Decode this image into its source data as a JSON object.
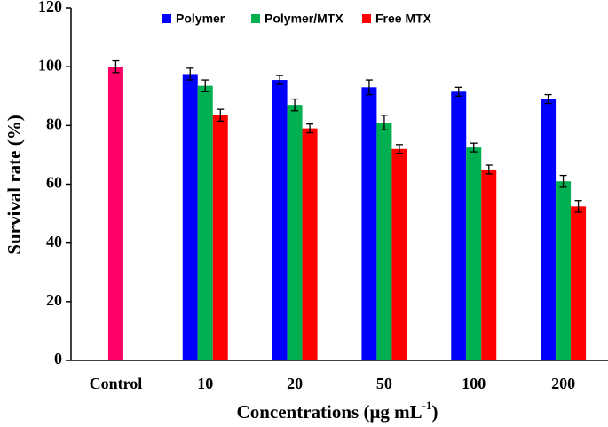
{
  "chart_data": {
    "type": "bar",
    "y_label": "Survival rate (%)",
    "x_label": "Concentrations (μg mL",
    "x_label_sup": "-1",
    "x_label_end": ")",
    "categories": [
      "Control",
      "10",
      "20",
      "50",
      "100",
      "200"
    ],
    "control": {
      "color": "#ff0066",
      "value": 100,
      "error": 2
    },
    "series": [
      {
        "name": "Polymer",
        "color": "#0000ff",
        "values": [
          null,
          97.5,
          95.5,
          93,
          91.5,
          89
        ],
        "errors": [
          null,
          2,
          1.5,
          2.5,
          1.5,
          1.5
        ]
      },
      {
        "name": "Polymer/MTX",
        "color": "#00b050",
        "values": [
          null,
          93.5,
          87,
          81,
          72.5,
          61
        ],
        "errors": [
          null,
          2,
          2,
          2.5,
          1.5,
          2
        ]
      },
      {
        "name": "Free MTX",
        "color": "#ff0000",
        "values": [
          null,
          83.5,
          79,
          72,
          65,
          52.5
        ],
        "errors": [
          null,
          2,
          1.5,
          1.5,
          1.5,
          2
        ]
      }
    ],
    "ylim": [
      0,
      120
    ],
    "yticks": [
      0,
      20,
      40,
      60,
      80,
      100,
      120
    ]
  }
}
